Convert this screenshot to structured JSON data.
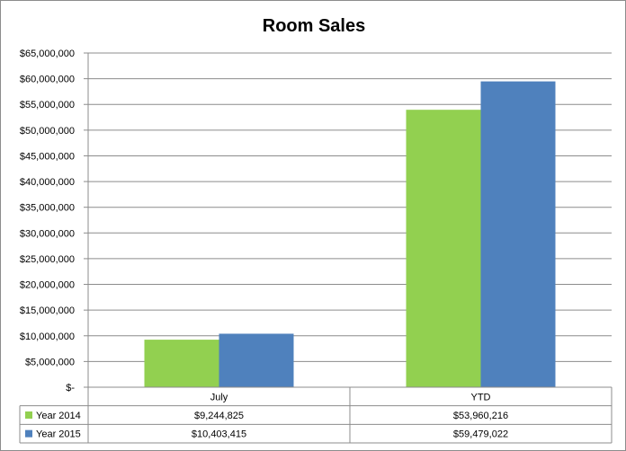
{
  "chart_data": {
    "type": "bar",
    "title": "Room Sales",
    "categories": [
      "July",
      "YTD"
    ],
    "series": [
      {
        "name": "Year 2014",
        "color": "#92d050",
        "values": [
          9244825,
          53960216
        ],
        "labels": [
          "$9,244,825",
          "$53,960,216"
        ]
      },
      {
        "name": "Year 2015",
        "color": "#4f81bd",
        "values": [
          10403415,
          59479022
        ],
        "labels": [
          "$10,403,415",
          "$59,479,022"
        ]
      }
    ],
    "ylim": [
      0,
      65000000
    ],
    "y_ticks": [
      {
        "value": 0,
        "label": "$-"
      },
      {
        "value": 5000000,
        "label": "$5,000,000"
      },
      {
        "value": 10000000,
        "label": "$10,000,000"
      },
      {
        "value": 15000000,
        "label": "$15,000,000"
      },
      {
        "value": 20000000,
        "label": "$20,000,000"
      },
      {
        "value": 25000000,
        "label": "$25,000,000"
      },
      {
        "value": 30000000,
        "label": "$30,000,000"
      },
      {
        "value": 35000000,
        "label": "$35,000,000"
      },
      {
        "value": 40000000,
        "label": "$40,000,000"
      },
      {
        "value": 45000000,
        "label": "$45,000,000"
      },
      {
        "value": 50000000,
        "label": "$50,000,000"
      },
      {
        "value": 55000000,
        "label": "$55,000,000"
      },
      {
        "value": 60000000,
        "label": "$60,000,000"
      },
      {
        "value": 65000000,
        "label": "$65,000,000"
      }
    ],
    "grid": true,
    "legend": "data-table",
    "xlabel": "",
    "ylabel": ""
  }
}
